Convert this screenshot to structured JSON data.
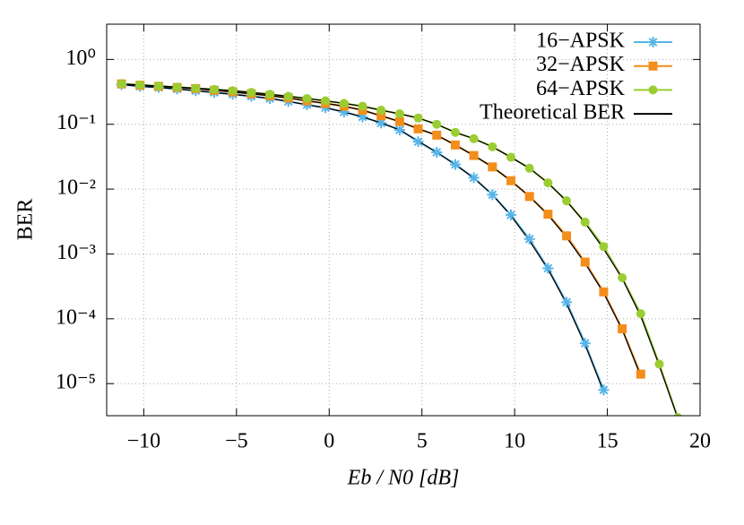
{
  "chart_data": {
    "type": "line",
    "log_y": true,
    "grid": true,
    "legend": "top-right",
    "ylabel": "BER",
    "xlabel": "Eb / N0 [dB]",
    "xlim": [
      -12,
      20
    ],
    "xticks": [
      {
        "value": -10,
        "label": "−10"
      },
      {
        "value": -5,
        "label": "−5"
      },
      0,
      5,
      10,
      15,
      20
    ],
    "ylim": [
      3.2e-06,
      3.5
    ],
    "yticks": [
      {
        "value": 1e-05,
        "label": "10⁻⁵"
      },
      {
        "value": 0.0001,
        "label": "10⁻⁴"
      },
      {
        "value": 0.001,
        "label": "10⁻³"
      },
      {
        "value": 0.01,
        "label": "10⁻²"
      },
      {
        "value": 0.1,
        "label": "10⁻¹"
      },
      {
        "value": 1,
        "label": "10⁰"
      }
    ],
    "x": [
      -11.2,
      -10.2,
      -9.2,
      -8.2,
      -7.2,
      -6.2,
      -5.2,
      -4.2,
      -3.2,
      -2.2,
      -1.2,
      -0.2,
      0.8,
      1.8,
      2.8,
      3.8,
      4.8,
      5.8,
      6.8,
      7.8,
      8.8,
      9.8,
      10.8,
      11.8,
      12.8,
      13.8,
      14.8,
      15.8,
      16.8,
      17.8,
      18.8
    ],
    "series": [
      {
        "name": "16−APSK",
        "color": "#56b4e9",
        "marker": "star",
        "values": [
          0.41,
          0.385,
          0.37,
          0.35,
          0.33,
          0.31,
          0.29,
          0.27,
          0.25,
          0.225,
          0.2,
          0.18,
          0.155,
          0.13,
          0.105,
          0.082,
          0.054,
          0.037,
          0.024,
          0.015,
          0.0082,
          0.004,
          0.0017,
          0.0006,
          0.00018,
          4.2e-05,
          8e-06,
          null,
          null,
          null,
          null
        ]
      },
      {
        "name": "32−APSK",
        "color": "#f28e1c",
        "marker": "square",
        "values": [
          0.42,
          0.4,
          0.385,
          0.37,
          0.355,
          0.335,
          0.315,
          0.295,
          0.275,
          0.255,
          0.23,
          0.21,
          0.19,
          0.165,
          0.135,
          0.11,
          0.085,
          0.068,
          0.048,
          0.033,
          0.022,
          0.0135,
          0.0077,
          0.0041,
          0.0019,
          0.00075,
          0.00026,
          7e-05,
          1.4e-05,
          null,
          null
        ]
      },
      {
        "name": "64−APSK",
        "color": "#9acd32",
        "marker": "circle",
        "values": [
          0.42,
          0.405,
          0.39,
          0.375,
          0.36,
          0.345,
          0.33,
          0.31,
          0.29,
          0.27,
          0.25,
          0.23,
          0.21,
          0.19,
          0.165,
          0.145,
          0.125,
          0.1,
          0.075,
          0.06,
          0.045,
          0.031,
          0.021,
          0.0125,
          0.0066,
          0.0031,
          0.0013,
          0.00043,
          0.00012,
          2e-05,
          3e-06
        ]
      }
    ],
    "theory": {
      "name": "Theoretical BER",
      "color": "#000000",
      "curves": [
        [
          0.41,
          0.385,
          0.37,
          0.35,
          0.33,
          0.31,
          0.29,
          0.27,
          0.25,
          0.225,
          0.2,
          0.18,
          0.155,
          0.13,
          0.105,
          0.082,
          0.055,
          0.037,
          0.024,
          0.0148,
          0.0082,
          0.0039,
          0.0016,
          0.00058,
          0.00017,
          4e-05,
          7.5e-06,
          null,
          null,
          null,
          null
        ],
        [
          0.42,
          0.4,
          0.385,
          0.37,
          0.355,
          0.335,
          0.315,
          0.295,
          0.275,
          0.255,
          0.23,
          0.21,
          0.19,
          0.165,
          0.135,
          0.11,
          0.085,
          0.068,
          0.048,
          0.033,
          0.022,
          0.0135,
          0.0077,
          0.004,
          0.0018,
          0.00072,
          0.00025,
          6.8e-05,
          1.3e-05,
          null,
          null
        ],
        [
          0.42,
          0.405,
          0.39,
          0.375,
          0.36,
          0.345,
          0.33,
          0.31,
          0.29,
          0.27,
          0.25,
          0.23,
          0.21,
          0.19,
          0.165,
          0.145,
          0.125,
          0.1,
          0.075,
          0.06,
          0.045,
          0.031,
          0.021,
          0.0124,
          0.0065,
          0.003,
          0.0012,
          0.00042,
          0.00011,
          1.9e-05,
          2.9e-06
        ]
      ]
    }
  }
}
